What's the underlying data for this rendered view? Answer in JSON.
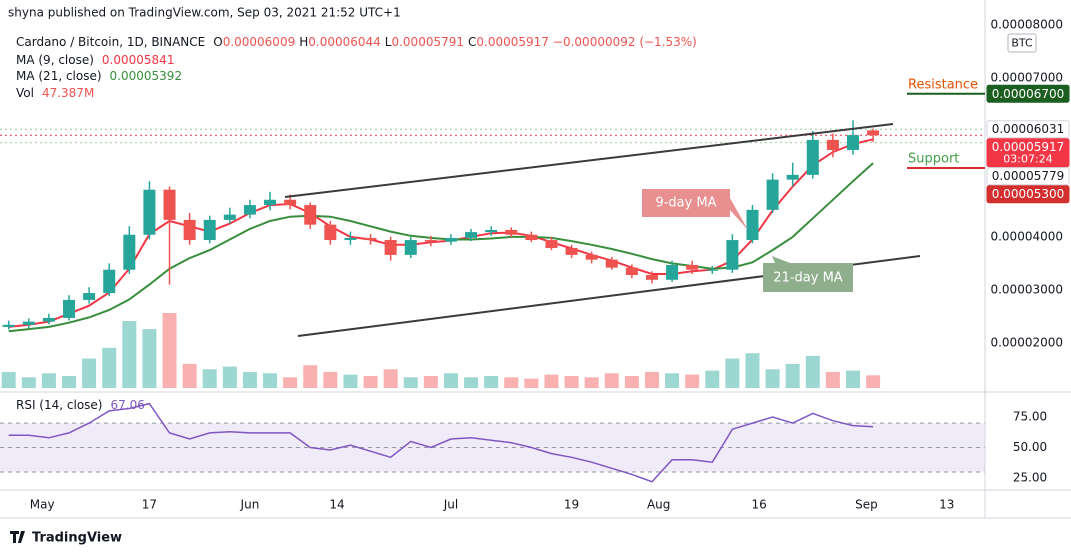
{
  "header": {
    "published": "shyna published on TradingView.com, Sep 03, 2021 21:52 UTC+1"
  },
  "legend": {
    "symbol": "Cardano / Bitcoin, 1D, BINANCE",
    "ohlc": [
      {
        "key": "O",
        "value": "0.00006009"
      },
      {
        "key": "H",
        "value": "0.00006044"
      },
      {
        "key": "L",
        "value": "0.00005791"
      },
      {
        "key": "C",
        "value": "0.00005917"
      }
    ],
    "change": "−0.00000092 (−1.53%)"
  },
  "currency": "BTC",
  "footer": "TradingView",
  "chart_data": {
    "type": "candlestick",
    "xlim": [
      -6.3,
      140.7
    ],
    "xticks": [
      {
        "value": 0,
        "label": "May"
      },
      {
        "value": 16,
        "label": "17"
      },
      {
        "value": 31,
        "label": "Jun"
      },
      {
        "value": 44,
        "label": "14"
      },
      {
        "value": 61,
        "label": "Jul"
      },
      {
        "value": 79,
        "label": "19"
      },
      {
        "value": 92,
        "label": "Aug"
      },
      {
        "value": 107,
        "label": "16"
      },
      {
        "value": 123,
        "label": "Sep"
      },
      {
        "value": 135,
        "label": "13"
      }
    ],
    "ylim": [
      1.11e-05,
      8.47e-05
    ],
    "yticks": [
      {
        "value": 8e-05,
        "label": "0.00008000"
      },
      {
        "value": 7e-05,
        "label": "0.00007000"
      },
      {
        "value": 4e-05,
        "label": "0.00004000"
      },
      {
        "value": 3e-05,
        "label": "0.00003000"
      },
      {
        "value": 2e-05,
        "label": "0.00002000"
      }
    ],
    "up_color": "#26a69a",
    "down_color": "#ef5350",
    "x": [
      -5,
      -2,
      1,
      4,
      7,
      10,
      13,
      16,
      19,
      22,
      25,
      28,
      31,
      34,
      37,
      40,
      43,
      46,
      49,
      52,
      55,
      58,
      61,
      64,
      67,
      70,
      73,
      76,
      79,
      82,
      85,
      88,
      91,
      94,
      97,
      100,
      103,
      106,
      109,
      112,
      115,
      118,
      121,
      124
    ],
    "open": [
      2.3e-05,
      2.34e-05,
      2.4e-05,
      2.47e-05,
      2.81e-05,
      2.94e-05,
      3.38e-05,
      4.04e-05,
      4.89e-05,
      4.32e-05,
      3.94e-05,
      4.32e-05,
      4.42e-05,
      4.6e-05,
      4.7e-05,
      4.6e-05,
      4.23e-05,
      3.94e-05,
      3.98e-05,
      3.94e-05,
      3.66e-05,
      3.94e-05,
      3.91e-05,
      3.98e-05,
      4.09e-05,
      4.13e-05,
      4.04e-05,
      3.94e-05,
      3.79e-05,
      3.66e-05,
      3.57e-05,
      3.42e-05,
      3.28e-05,
      3.19e-05,
      3.47e-05,
      3.38e-05,
      3.38e-05,
      3.94e-05,
      4.51e-05,
      5.08e-05,
      5.17e-05,
      5.83e-05,
      5.64e-05,
      6.009e-05
    ],
    "high": [
      2.42e-05,
      2.46e-05,
      2.55e-05,
      2.9e-05,
      3.05e-05,
      3.5e-05,
      4.2e-05,
      5.05e-05,
      4.95e-05,
      4.45e-05,
      4.4e-05,
      4.55e-05,
      4.7e-05,
      4.85e-05,
      4.8e-05,
      4.65e-05,
      4.3e-05,
      4.1e-05,
      4.05e-05,
      4e-05,
      4e-05,
      4.02e-05,
      4.05e-05,
      4.15e-05,
      4.2e-05,
      4.18e-05,
      4.1e-05,
      4e-05,
      3.85e-05,
      3.72e-05,
      3.62e-05,
      3.48e-05,
      3.35e-05,
      3.55e-05,
      3.55e-05,
      3.45e-05,
      4.05e-05,
      4.6e-05,
      5.2e-05,
      5.4e-05,
      6e-05,
      5.95e-05,
      6.2e-05,
      6.044e-05
    ],
    "low": [
      2.25e-05,
      2.28e-05,
      2.35e-05,
      2.42e-05,
      2.74e-05,
      2.88e-05,
      3.3e-05,
      3.95e-05,
      3.1e-05,
      3.85e-05,
      3.88e-05,
      4.25e-05,
      4.35e-05,
      4.5e-05,
      4.52e-05,
      4.15e-05,
      3.85e-05,
      3.85e-05,
      3.85e-05,
      3.55e-05,
      3.6e-05,
      3.82e-05,
      3.85e-05,
      3.92e-05,
      4.02e-05,
      4e-05,
      3.9e-05,
      3.75e-05,
      3.6e-05,
      3.5e-05,
      3.38e-05,
      3.22e-05,
      3.12e-05,
      3.15e-05,
      3.3e-05,
      3.3e-05,
      3.32e-05,
      3.88e-05,
      4.45e-05,
      4.95e-05,
      5.1e-05,
      5.5e-05,
      5.55e-05,
      5.791e-05
    ],
    "close": [
      2.34e-05,
      2.4e-05,
      2.47e-05,
      2.81e-05,
      2.94e-05,
      3.38e-05,
      4.04e-05,
      4.89e-05,
      4.32e-05,
      3.94e-05,
      4.32e-05,
      4.42e-05,
      4.6e-05,
      4.7e-05,
      4.6e-05,
      4.23e-05,
      3.94e-05,
      3.98e-05,
      3.94e-05,
      3.66e-05,
      3.94e-05,
      3.91e-05,
      3.98e-05,
      4.09e-05,
      4.13e-05,
      4.04e-05,
      3.94e-05,
      3.79e-05,
      3.66e-05,
      3.57e-05,
      3.42e-05,
      3.28e-05,
      3.19e-05,
      3.47e-05,
      3.38e-05,
      3.38e-05,
      3.94e-05,
      4.51e-05,
      5.08e-05,
      5.17e-05,
      5.83e-05,
      5.64e-05,
      5.92e-05,
      5.917e-05
    ],
    "series": [
      {
        "name": "MA (9, close)",
        "color": "#f23645",
        "last": "0.00005841",
        "values": [
          2.3e-05,
          2.34e-05,
          2.4e-05,
          2.55e-05,
          2.7e-05,
          2.95e-05,
          3.4e-05,
          4.05e-05,
          4.3e-05,
          4.2e-05,
          4.1e-05,
          4.25e-05,
          4.45e-05,
          4.6e-05,
          4.62e-05,
          4.45e-05,
          4.2e-05,
          4e-05,
          3.95e-05,
          3.85e-05,
          3.85e-05,
          3.9e-05,
          3.93e-05,
          4e-05,
          4.07e-05,
          4.08e-05,
          4.02e-05,
          3.9e-05,
          3.78e-05,
          3.66e-05,
          3.55e-05,
          3.42e-05,
          3.3e-05,
          3.3e-05,
          3.35e-05,
          3.38e-05,
          3.55e-05,
          3.95e-05,
          4.5e-05,
          4.95e-05,
          5.35e-05,
          5.6e-05,
          5.75e-05,
          5.841e-05
        ]
      },
      {
        "name": "MA (21, close)",
        "color": "#388e3c",
        "last": "0.00005392",
        "values": [
          2.22e-05,
          2.26e-05,
          2.3e-05,
          2.38e-05,
          2.48e-05,
          2.62e-05,
          2.82e-05,
          3.1e-05,
          3.4e-05,
          3.6e-05,
          3.75e-05,
          3.95e-05,
          4.15e-05,
          4.3e-05,
          4.38e-05,
          4.4e-05,
          4.38e-05,
          4.3e-05,
          4.2e-05,
          4.1e-05,
          4.02e-05,
          3.98e-05,
          3.95e-05,
          3.95e-05,
          3.97e-05,
          4e-05,
          4e-05,
          3.98e-05,
          3.92e-05,
          3.85e-05,
          3.77e-05,
          3.68e-05,
          3.58e-05,
          3.5e-05,
          3.45e-05,
          3.4e-05,
          3.42e-05,
          3.52e-05,
          3.75e-05,
          4e-05,
          4.35e-05,
          4.7e-05,
          5.05e-05,
          5.392e-05
        ]
      }
    ],
    "volume": {
      "name": "Vol",
      "last": "47.387M",
      "values": [
        60,
        40,
        55,
        45,
        110,
        150,
        250,
        220,
        280,
        90,
        70,
        80,
        60,
        55,
        40,
        85,
        60,
        50,
        45,
        70,
        40,
        45,
        55,
        40,
        45,
        40,
        35,
        50,
        45,
        40,
        55,
        45,
        60,
        55,
        50,
        65,
        110,
        130,
        70,
        90,
        120,
        60,
        65,
        47.387
      ]
    },
    "rsi": {
      "name": "RSI (14, close)",
      "last": "67.06",
      "color": "#7e57c2",
      "ylim": [
        15.2,
        94.7
      ],
      "yticks": [
        {
          "value": 75,
          "label": "75.00"
        },
        {
          "value": 50,
          "label": "50.00"
        },
        {
          "value": 25,
          "label": "25.00"
        }
      ],
      "band": [
        30,
        70
      ],
      "values": [
        60,
        60,
        58,
        62,
        70,
        80,
        82,
        86,
        62,
        57,
        62,
        63,
        62,
        62,
        62,
        50,
        48,
        52,
        47,
        42,
        55,
        50,
        57,
        58,
        56,
        54,
        50,
        45,
        42,
        38,
        33,
        28,
        22,
        40,
        40,
        38,
        65,
        70,
        75,
        70,
        78,
        72,
        68,
        67.06
      ]
    },
    "price_labels": [
      {
        "value": 6.7e-05,
        "label": "0.00006700",
        "color": "#1b5e20",
        "text_color": "#ffffff",
        "tag": "Resistance",
        "tag_color": "#e65100"
      },
      {
        "value": 6.031e-05,
        "label": "0.00006031",
        "color": "#ffffff",
        "text_color": "#131722"
      },
      {
        "value": 5.917e-05,
        "label": "0.00005917",
        "countdown": "03:07:24",
        "color": "#f23645",
        "text_color": "#ffffff"
      },
      {
        "value": 5.779e-05,
        "label": "0.00005779",
        "color": "#ffffff",
        "text_color": "#131722"
      },
      {
        "value": 5.3e-05,
        "label": "0.00005300",
        "color": "#d32f2f",
        "text_color": "#ffffff",
        "tag": "Support",
        "tag_color": "#43a047"
      }
    ],
    "annotations": [
      "9-day MA",
      "21-day MA"
    ]
  }
}
